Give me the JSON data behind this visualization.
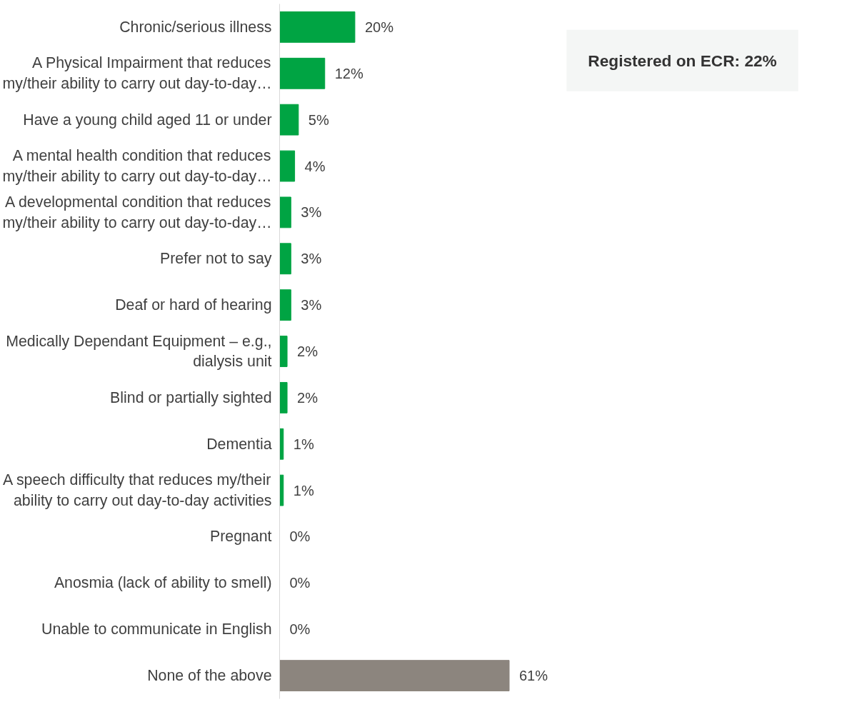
{
  "chart_data": {
    "type": "bar",
    "orientation": "horizontal",
    "data_labels": true,
    "grid": false,
    "categories": [
      "Chronic/serious illness",
      "A Physical Impairment that reduces\nmy/their ability to carry out day-to-day…",
      "Have a young child aged 11 or under",
      "A mental health condition that reduces\nmy/their ability to carry out day-to-day…",
      "A developmental condition that reduces\nmy/their ability to carry out day-to-day…",
      "Prefer not to say",
      "Deaf or hard of hearing",
      "Medically Dependant Equipment – e.g.,\ndialysis unit",
      "Blind or partially sighted",
      "Dementia",
      "A speech difficulty that reduces my/their\nability to carry out day-to-day activities",
      "Pregnant",
      "Anosmia (lack of ability to smell)",
      "Unable to communicate in English",
      "None of the above"
    ],
    "values": [
      20,
      12,
      5,
      4,
      3,
      3,
      3,
      2,
      2,
      1,
      1,
      0,
      0,
      0,
      61
    ],
    "value_labels": [
      "20%",
      "12%",
      "5%",
      "4%",
      "3%",
      "3%",
      "3%",
      "2%",
      "2%",
      "1%",
      "1%",
      "0%",
      "0%",
      "0%",
      "61%"
    ],
    "colors": [
      "#00a443",
      "#00a443",
      "#00a443",
      "#00a443",
      "#00a443",
      "#00a443",
      "#00a443",
      "#00a443",
      "#00a443",
      "#00a443",
      "#00a443",
      "#00a443",
      "#00a443",
      "#00a443",
      "#8c857e"
    ],
    "annotations": [
      "Registered on ECR: 22%"
    ]
  }
}
